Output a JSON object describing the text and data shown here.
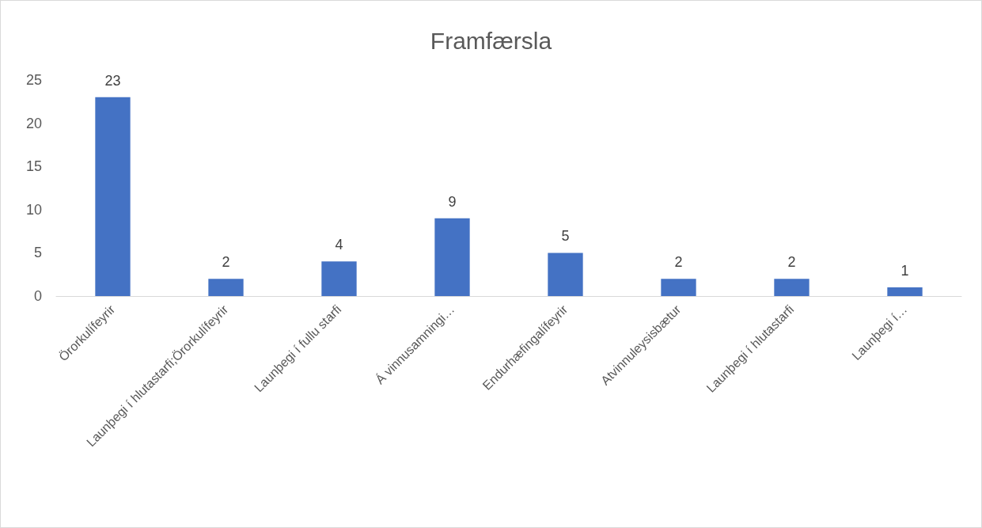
{
  "chart_data": {
    "type": "bar",
    "title": "Framfærsla",
    "categories": [
      "Örorkulífeyrir",
      "Launþegi í hlutastarfi;Örorkulífeyrir",
      "Launþegi í fullu starfi",
      "Á vinnusamningi…",
      "Endurhæfingalífeyrir",
      "Atvinnuleysisbætur",
      "Launþegi í hlutastarfi",
      "Launþegi í…"
    ],
    "values": [
      23,
      2,
      4,
      9,
      5,
      2,
      2,
      1
    ],
    "color": "#4472c4",
    "ylim": [
      0,
      25
    ],
    "yticks": [
      0,
      5,
      10,
      15,
      20,
      25
    ],
    "grid": false,
    "data_labels": true
  }
}
